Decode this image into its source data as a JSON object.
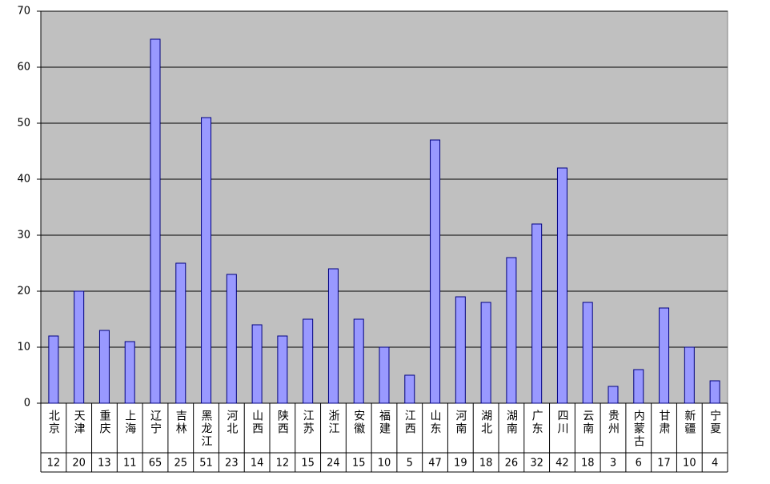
{
  "chart_data": {
    "type": "bar",
    "categories": [
      "北京",
      "天津",
      "重庆",
      "上海",
      "辽宁",
      "吉林",
      "黑龙江",
      "河北",
      "山西",
      "陕西",
      "江苏",
      "浙江",
      "安徽",
      "福建",
      "江西",
      "山东",
      "河南",
      "湖北",
      "湖南",
      "广东",
      "四川",
      "云南",
      "贵州",
      "内蒙古",
      "甘肃",
      "新疆",
      "宁夏"
    ],
    "values": [
      12,
      20,
      13,
      11,
      65,
      25,
      51,
      23,
      14,
      12,
      15,
      24,
      15,
      10,
      5,
      47,
      19,
      18,
      26,
      32,
      42,
      18,
      3,
      6,
      17,
      10,
      4
    ],
    "color": "#9999ff",
    "ylim": [
      0,
      70
    ],
    "yticks": [
      0,
      10,
      20,
      30,
      40,
      50,
      60,
      70
    ],
    "grid": true
  }
}
